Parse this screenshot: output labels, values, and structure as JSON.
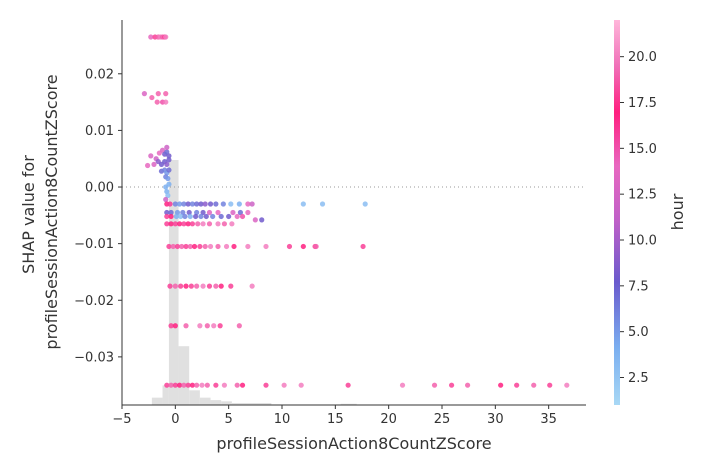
{
  "chart_data": {
    "type": "scatter",
    "xlabel": "profileSessionAction8CountZScore",
    "ylabel_lines": [
      "SHAP value for",
      "profileSessionAction8CountZScore"
    ],
    "xlim": [
      -5,
      38.5
    ],
    "ylim": [
      -0.0385,
      0.0295
    ],
    "x_ticks": [
      -5,
      0,
      5,
      10,
      15,
      20,
      25,
      30,
      35
    ],
    "x_tick_labels": [
      "−5",
      "0",
      "5",
      "10",
      "15",
      "20",
      "25",
      "30",
      "35"
    ],
    "y_ticks": [
      0.02,
      0.01,
      0.0,
      -0.01,
      -0.02,
      -0.03
    ],
    "y_tick_labels": [
      "0.02",
      "0.01",
      "0.00",
      "−0.01",
      "−0.02",
      "−0.03"
    ],
    "zero_line": true,
    "colorbar": {
      "label": "hour",
      "range": [
        1,
        22
      ],
      "ticks": [
        2.5,
        5.0,
        7.5,
        10.0,
        12.5,
        15.0,
        17.5,
        20.0
      ],
      "tick_labels": [
        "2.5",
        "5.0",
        "7.5",
        "10.0",
        "12.5",
        "15.0",
        "17.5",
        "20.0"
      ],
      "colors": [
        "#a8d8f5",
        "#7aaef0",
        "#6a5acd",
        "#d96fc0",
        "#f08ad0",
        "#ff1f7f",
        "#e0007a",
        "#ffb6da"
      ]
    },
    "histogram": [
      {
        "x0": -2.2,
        "x1": -1.2,
        "count": 3
      },
      {
        "x0": -1.2,
        "x1": -0.6,
        "count": 8
      },
      {
        "x0": -0.6,
        "x1": 0.3,
        "count": 100
      },
      {
        "x0": 0.3,
        "x1": 1.3,
        "count": 24
      },
      {
        "x0": 1.3,
        "x1": 2.3,
        "count": 6
      },
      {
        "x0": 2.3,
        "x1": 3.3,
        "count": 3
      },
      {
        "x0": 3.3,
        "x1": 4.3,
        "count": 2
      },
      {
        "x0": 4.3,
        "x1": 5.3,
        "count": 1.5
      },
      {
        "x0": 5.3,
        "x1": 9.0,
        "count": 0.8
      },
      {
        "x0": 15.5,
        "x1": 17.0,
        "count": 0.5
      }
    ],
    "points": [
      {
        "x": -2.3,
        "y": 0.0265,
        "h": 14
      },
      {
        "x": -1.9,
        "y": 0.0265,
        "h": 18
      },
      {
        "x": -1.6,
        "y": 0.0265,
        "h": 19
      },
      {
        "x": -1.4,
        "y": 0.0265,
        "h": 20
      },
      {
        "x": -1.2,
        "y": 0.0265,
        "h": 19
      },
      {
        "x": -1.0,
        "y": 0.0265,
        "h": 18
      },
      {
        "x": -0.9,
        "y": 0.0265,
        "h": 20
      },
      {
        "x": -2.9,
        "y": 0.0165,
        "h": 13
      },
      {
        "x": -2.2,
        "y": 0.0158,
        "h": 19
      },
      {
        "x": -1.6,
        "y": 0.0165,
        "h": 19
      },
      {
        "x": -1.7,
        "y": 0.015,
        "h": 19
      },
      {
        "x": -1.2,
        "y": 0.015,
        "h": 15
      },
      {
        "x": -0.9,
        "y": 0.015,
        "h": 20
      },
      {
        "x": -0.9,
        "y": 0.0165,
        "h": 19
      },
      {
        "x": -2.3,
        "y": 0.0055,
        "h": 13
      },
      {
        "x": -1.8,
        "y": 0.005,
        "h": 12
      },
      {
        "x": -1.5,
        "y": 0.006,
        "h": 14
      },
      {
        "x": -1.2,
        "y": 0.0065,
        "h": 13
      },
      {
        "x": -1.0,
        "y": 0.0058,
        "h": 8
      },
      {
        "x": -0.8,
        "y": 0.0062,
        "h": 7
      },
      {
        "x": -0.6,
        "y": 0.0055,
        "h": 8
      },
      {
        "x": -0.8,
        "y": 0.007,
        "h": 12
      },
      {
        "x": -2.6,
        "y": 0.0038,
        "h": 14
      },
      {
        "x": -2.0,
        "y": 0.004,
        "h": 13
      },
      {
        "x": -1.6,
        "y": 0.0045,
        "h": 9
      },
      {
        "x": -1.3,
        "y": 0.004,
        "h": 8
      },
      {
        "x": -1.0,
        "y": 0.0045,
        "h": 8
      },
      {
        "x": -0.8,
        "y": 0.004,
        "h": 9
      },
      {
        "x": -0.6,
        "y": 0.0048,
        "h": 8
      },
      {
        "x": -1.3,
        "y": 0.0028,
        "h": 7
      },
      {
        "x": -1.0,
        "y": 0.003,
        "h": 6
      },
      {
        "x": -0.8,
        "y": 0.0025,
        "h": 5
      },
      {
        "x": -0.6,
        "y": 0.003,
        "h": 7
      },
      {
        "x": -0.9,
        "y": 0.0018,
        "h": 6
      },
      {
        "x": -0.7,
        "y": 0.0015,
        "h": 5
      },
      {
        "x": -0.9,
        "y": 0.0,
        "h": 4
      },
      {
        "x": -0.8,
        "y": -0.0008,
        "h": 4
      },
      {
        "x": -0.7,
        "y": -0.0015,
        "h": 3
      },
      {
        "x": -0.9,
        "y": -0.0022,
        "h": 12
      },
      {
        "x": -0.6,
        "y": 0.0005,
        "h": 4
      },
      {
        "x": -0.8,
        "y": -0.003,
        "h": 17
      },
      {
        "x": -0.5,
        "y": -0.003,
        "h": 16
      },
      {
        "x": 0.0,
        "y": -0.003,
        "h": 6
      },
      {
        "x": 0.4,
        "y": -0.003,
        "h": 5
      },
      {
        "x": 0.8,
        "y": -0.003,
        "h": 6
      },
      {
        "x": 1.2,
        "y": -0.003,
        "h": 8
      },
      {
        "x": 1.6,
        "y": -0.003,
        "h": 6
      },
      {
        "x": 2.0,
        "y": -0.003,
        "h": 7
      },
      {
        "x": 2.4,
        "y": -0.003,
        "h": 8
      },
      {
        "x": 2.8,
        "y": -0.003,
        "h": 9
      },
      {
        "x": 3.3,
        "y": -0.003,
        "h": 8
      },
      {
        "x": 3.8,
        "y": -0.003,
        "h": 7
      },
      {
        "x": 4.5,
        "y": -0.003,
        "h": 6
      },
      {
        "x": 5.2,
        "y": -0.003,
        "h": 3
      },
      {
        "x": 6.0,
        "y": -0.003,
        "h": 4
      },
      {
        "x": 6.8,
        "y": -0.003,
        "h": 14
      },
      {
        "x": 7.2,
        "y": -0.003,
        "h": 12
      },
      {
        "x": 12.0,
        "y": -0.003,
        "h": 3
      },
      {
        "x": 13.8,
        "y": -0.003,
        "h": 3
      },
      {
        "x": 17.8,
        "y": -0.003,
        "h": 3
      },
      {
        "x": -0.8,
        "y": -0.0045,
        "h": 8
      },
      {
        "x": -0.4,
        "y": -0.0045,
        "h": 7
      },
      {
        "x": 0.2,
        "y": -0.0045,
        "h": 5
      },
      {
        "x": 0.7,
        "y": -0.0045,
        "h": 6
      },
      {
        "x": 1.3,
        "y": -0.0045,
        "h": 8
      },
      {
        "x": 2.0,
        "y": -0.0045,
        "h": 6
      },
      {
        "x": 2.6,
        "y": -0.0045,
        "h": 8
      },
      {
        "x": 3.2,
        "y": -0.0045,
        "h": 13
      },
      {
        "x": 4.0,
        "y": -0.0045,
        "h": 14
      },
      {
        "x": 5.4,
        "y": -0.0045,
        "h": 13
      },
      {
        "x": 6.1,
        "y": -0.0045,
        "h": 7
      },
      {
        "x": 6.8,
        "y": -0.0045,
        "h": 14
      },
      {
        "x": -0.8,
        "y": -0.0052,
        "h": 18
      },
      {
        "x": -0.4,
        "y": -0.0052,
        "h": 17
      },
      {
        "x": 0.1,
        "y": -0.0052,
        "h": 4
      },
      {
        "x": 0.5,
        "y": -0.0052,
        "h": 3
      },
      {
        "x": 0.9,
        "y": -0.0052,
        "h": 6
      },
      {
        "x": 1.4,
        "y": -0.0052,
        "h": 4
      },
      {
        "x": 1.9,
        "y": -0.0052,
        "h": 8
      },
      {
        "x": 2.4,
        "y": -0.0052,
        "h": 6
      },
      {
        "x": 2.9,
        "y": -0.0052,
        "h": 8
      },
      {
        "x": 3.5,
        "y": -0.0052,
        "h": 6
      },
      {
        "x": 4.3,
        "y": -0.0052,
        "h": 7
      },
      {
        "x": 5.0,
        "y": -0.0052,
        "h": 8
      },
      {
        "x": 5.8,
        "y": -0.0052,
        "h": 14
      },
      {
        "x": 6.3,
        "y": -0.0052,
        "h": 15
      },
      {
        "x": 7.5,
        "y": -0.0058,
        "h": 13
      },
      {
        "x": 8.1,
        "y": -0.0058,
        "h": 8
      },
      {
        "x": -0.8,
        "y": -0.0065,
        "h": 18
      },
      {
        "x": -0.4,
        "y": -0.0065,
        "h": 17
      },
      {
        "x": 0.0,
        "y": -0.0065,
        "h": 18
      },
      {
        "x": 0.4,
        "y": -0.0065,
        "h": 17
      },
      {
        "x": 0.8,
        "y": -0.0065,
        "h": 18
      },
      {
        "x": 1.2,
        "y": -0.0065,
        "h": 17
      },
      {
        "x": 1.6,
        "y": -0.0065,
        "h": 18
      },
      {
        "x": 2.1,
        "y": -0.0065,
        "h": 19
      },
      {
        "x": 2.6,
        "y": -0.0065,
        "h": 20
      },
      {
        "x": 3.2,
        "y": -0.0065,
        "h": 19
      },
      {
        "x": 4.0,
        "y": -0.0065,
        "h": 20
      },
      {
        "x": 4.6,
        "y": -0.0065,
        "h": 19
      },
      {
        "x": 5.3,
        "y": -0.0065,
        "h": 20
      },
      {
        "x": -0.6,
        "y": -0.0105,
        "h": 18
      },
      {
        "x": -0.2,
        "y": -0.0105,
        "h": 19
      },
      {
        "x": 0.2,
        "y": -0.0105,
        "h": 18
      },
      {
        "x": 0.6,
        "y": -0.0105,
        "h": 19
      },
      {
        "x": 1.0,
        "y": -0.0105,
        "h": 18
      },
      {
        "x": 1.4,
        "y": -0.0105,
        "h": 19
      },
      {
        "x": 1.8,
        "y": -0.0105,
        "h": 17
      },
      {
        "x": 2.3,
        "y": -0.0105,
        "h": 18
      },
      {
        "x": 2.8,
        "y": -0.0105,
        "h": 19
      },
      {
        "x": 3.3,
        "y": -0.0105,
        "h": 20
      },
      {
        "x": 4.0,
        "y": -0.0105,
        "h": 19
      },
      {
        "x": 4.8,
        "y": -0.0105,
        "h": 20
      },
      {
        "x": 5.5,
        "y": -0.0105,
        "h": 17
      },
      {
        "x": 6.8,
        "y": -0.0105,
        "h": 20
      },
      {
        "x": 8.5,
        "y": -0.0105,
        "h": 20
      },
      {
        "x": 10.7,
        "y": -0.0105,
        "h": 18
      },
      {
        "x": 12.0,
        "y": -0.0105,
        "h": 17
      },
      {
        "x": 13.1,
        "y": -0.0105,
        "h": 18
      },
      {
        "x": 13.2,
        "y": -0.0105,
        "h": 19
      },
      {
        "x": 17.6,
        "y": -0.0105,
        "h": 18
      },
      {
        "x": -0.5,
        "y": -0.0175,
        "h": 18
      },
      {
        "x": 0.0,
        "y": -0.0175,
        "h": 19
      },
      {
        "x": 0.5,
        "y": -0.0175,
        "h": 18
      },
      {
        "x": 1.0,
        "y": -0.0175,
        "h": 17
      },
      {
        "x": 1.5,
        "y": -0.0175,
        "h": 18
      },
      {
        "x": 2.0,
        "y": -0.0175,
        "h": 19
      },
      {
        "x": 2.6,
        "y": -0.0175,
        "h": 20
      },
      {
        "x": 3.2,
        "y": -0.0175,
        "h": 18
      },
      {
        "x": 3.8,
        "y": -0.0175,
        "h": 19
      },
      {
        "x": 4.3,
        "y": -0.0175,
        "h": 17
      },
      {
        "x": 5.2,
        "y": -0.0175,
        "h": 18
      },
      {
        "x": 7.2,
        "y": -0.0175,
        "h": 20
      },
      {
        "x": -0.4,
        "y": -0.0245,
        "h": 18
      },
      {
        "x": 0.0,
        "y": -0.0245,
        "h": 17
      },
      {
        "x": 1.0,
        "y": -0.0245,
        "h": 19
      },
      {
        "x": 2.3,
        "y": -0.0245,
        "h": 20
      },
      {
        "x": 3.0,
        "y": -0.0245,
        "h": 19
      },
      {
        "x": 3.6,
        "y": -0.0245,
        "h": 20
      },
      {
        "x": 4.2,
        "y": -0.0245,
        "h": 18
      },
      {
        "x": 6.0,
        "y": -0.0245,
        "h": 19
      },
      {
        "x": -0.8,
        "y": -0.035,
        "h": 18
      },
      {
        "x": -0.4,
        "y": -0.035,
        "h": 19
      },
      {
        "x": 0.0,
        "y": -0.035,
        "h": 18
      },
      {
        "x": 0.4,
        "y": -0.035,
        "h": 17
      },
      {
        "x": 0.8,
        "y": -0.035,
        "h": 19
      },
      {
        "x": 1.2,
        "y": -0.035,
        "h": 18
      },
      {
        "x": 1.6,
        "y": -0.035,
        "h": 17
      },
      {
        "x": 2.0,
        "y": -0.035,
        "h": 19
      },
      {
        "x": 2.5,
        "y": -0.035,
        "h": 20
      },
      {
        "x": 3.0,
        "y": -0.035,
        "h": 19
      },
      {
        "x": 3.8,
        "y": -0.035,
        "h": 18
      },
      {
        "x": 4.6,
        "y": -0.035,
        "h": 20
      },
      {
        "x": 5.8,
        "y": -0.035,
        "h": 19
      },
      {
        "x": 6.3,
        "y": -0.035,
        "h": 17
      },
      {
        "x": 8.5,
        "y": -0.035,
        "h": 18
      },
      {
        "x": 10.2,
        "y": -0.035,
        "h": 20
      },
      {
        "x": 11.8,
        "y": -0.035,
        "h": 20
      },
      {
        "x": 16.2,
        "y": -0.035,
        "h": 18
      },
      {
        "x": 21.3,
        "y": -0.035,
        "h": 20
      },
      {
        "x": 24.3,
        "y": -0.035,
        "h": 19
      },
      {
        "x": 25.9,
        "y": -0.035,
        "h": 18
      },
      {
        "x": 27.4,
        "y": -0.035,
        "h": 19
      },
      {
        "x": 30.5,
        "y": -0.035,
        "h": 17
      },
      {
        "x": 32.0,
        "y": -0.035,
        "h": 18
      },
      {
        "x": 33.6,
        "y": -0.035,
        "h": 19
      },
      {
        "x": 35.1,
        "y": -0.035,
        "h": 18
      },
      {
        "x": 36.7,
        "y": -0.035,
        "h": 20
      }
    ]
  }
}
